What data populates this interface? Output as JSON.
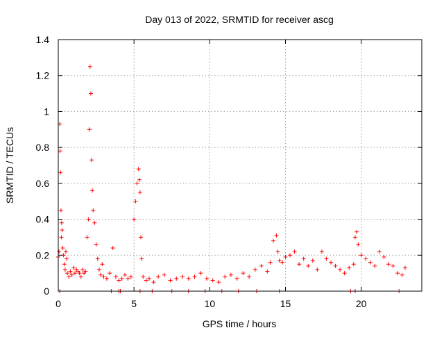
{
  "chart_data": {
    "type": "scatter",
    "title": "Day 013 of 2022, SRMTID for receiver ascg",
    "xlabel": "GPS time / hours",
    "ylabel": "SRMTID / TECUs",
    "xlim": [
      0,
      24
    ],
    "ylim": [
      0,
      1.4
    ],
    "xticks": [
      0,
      5,
      10,
      15,
      20
    ],
    "xtick_labels": [
      "0",
      "5",
      "10",
      "15",
      "20"
    ],
    "yticks": [
      0,
      0.2,
      0.4,
      0.6,
      0.8,
      1.0,
      1.2,
      1.4
    ],
    "ytick_labels": [
      "0",
      "0.2",
      "0.4",
      "0.6",
      "0.8",
      "1",
      "1.2",
      "1.4"
    ],
    "grid": true,
    "marker": "plus",
    "color": "#ff0000",
    "series": [
      {
        "name": "SRMTID",
        "x": [
          0.0,
          0.05,
          0.1,
          0.12,
          0.15,
          0.18,
          0.2,
          0.22,
          0.25,
          0.3,
          0.35,
          0.4,
          0.45,
          0.5,
          0.55,
          0.6,
          0.7,
          0.8,
          0.9,
          1.0,
          1.1,
          1.2,
          1.3,
          1.4,
          1.5,
          1.6,
          1.7,
          1.8,
          1.9,
          2.0,
          2.05,
          2.1,
          2.15,
          2.2,
          2.25,
          2.3,
          2.4,
          2.5,
          2.6,
          2.7,
          2.8,
          2.9,
          3.0,
          3.2,
          3.4,
          3.6,
          3.8,
          4.0,
          4.2,
          4.4,
          4.6,
          4.8,
          5.0,
          5.1,
          5.2,
          5.3,
          5.35,
          5.4,
          5.45,
          5.5,
          5.6,
          5.8,
          6.0,
          6.3,
          6.6,
          7.0,
          7.4,
          7.8,
          8.2,
          8.6,
          9.0,
          9.4,
          9.8,
          10.2,
          10.6,
          11.0,
          11.4,
          11.8,
          12.2,
          12.6,
          13.0,
          13.4,
          13.8,
          14.0,
          14.2,
          14.4,
          14.5,
          14.6,
          14.8,
          15.0,
          15.3,
          15.6,
          15.9,
          16.2,
          16.5,
          16.8,
          17.1,
          17.4,
          17.7,
          18.0,
          18.3,
          18.6,
          18.9,
          19.2,
          19.5,
          19.6,
          19.7,
          19.8,
          20.0,
          20.3,
          20.6,
          20.9,
          21.2,
          21.5,
          21.8,
          22.1,
          22.4,
          22.7,
          22.9
        ],
        "y": [
          0.19,
          0.22,
          0.93,
          0.78,
          0.66,
          0.45,
          0.3,
          0.38,
          0.34,
          0.24,
          0.2,
          0.15,
          0.12,
          0.22,
          0.18,
          0.1,
          0.08,
          0.11,
          0.09,
          0.13,
          0.1,
          0.12,
          0.11,
          0.1,
          0.08,
          0.12,
          0.1,
          0.11,
          0.3,
          0.4,
          0.9,
          1.25,
          1.1,
          0.73,
          0.56,
          0.45,
          0.38,
          0.26,
          0.18,
          0.12,
          0.09,
          0.15,
          0.08,
          0.07,
          0.1,
          0.24,
          0.08,
          0.06,
          0.07,
          0.09,
          0.07,
          0.08,
          0.4,
          0.5,
          0.6,
          0.68,
          0.62,
          0.55,
          0.3,
          0.18,
          0.08,
          0.06,
          0.07,
          0.05,
          0.08,
          0.09,
          0.06,
          0.07,
          0.08,
          0.07,
          0.08,
          0.1,
          0.07,
          0.06,
          0.05,
          0.08,
          0.09,
          0.07,
          0.1,
          0.08,
          0.12,
          0.14,
          0.11,
          0.16,
          0.28,
          0.31,
          0.22,
          0.17,
          0.16,
          0.19,
          0.2,
          0.22,
          0.15,
          0.18,
          0.14,
          0.17,
          0.12,
          0.22,
          0.18,
          0.16,
          0.14,
          0.12,
          0.1,
          0.13,
          0.15,
          0.3,
          0.33,
          0.26,
          0.2,
          0.18,
          0.16,
          0.14,
          0.22,
          0.19,
          0.15,
          0.14,
          0.1,
          0.09,
          0.13
        ],
        "y_zero_x": [
          0.1,
          3.5,
          4.0,
          4.1,
          5.4,
          6.2,
          7.5,
          8.6,
          9.7,
          10.8,
          11.9,
          13.1,
          14.6,
          19.3,
          19.6,
          22.5
        ]
      }
    ]
  }
}
